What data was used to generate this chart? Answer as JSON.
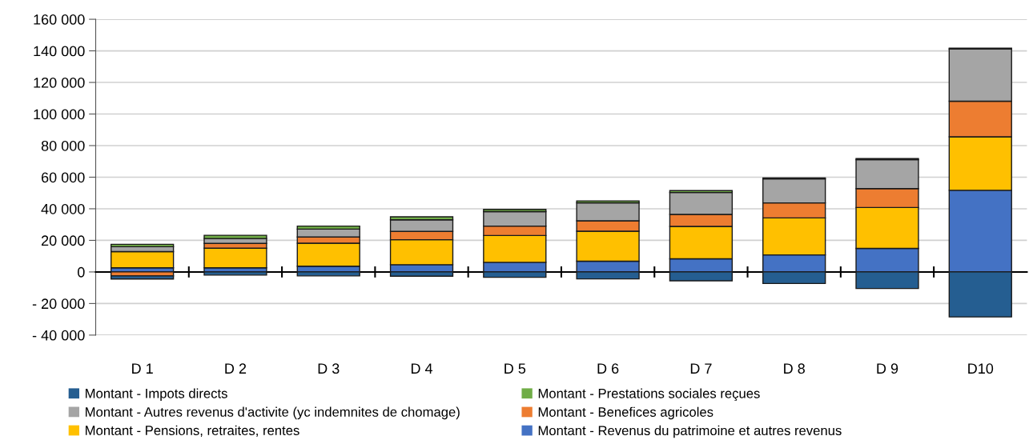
{
  "chart_data": {
    "type": "bar",
    "stacked": true,
    "categories": [
      "D 1",
      "D 2",
      "D 3",
      "D 4",
      "D 5",
      "D 6",
      "D 7",
      "D 8",
      "D 9",
      "D10"
    ],
    "series": [
      {
        "name": "Montant - Revenus du patrimoine et autres revenus",
        "color": "#4472c4",
        "values": [
          2600,
          2600,
          3600,
          4600,
          6100,
          6800,
          8300,
          10800,
          14900,
          51700
        ]
      },
      {
        "name": "Montant - Pensions, retraites, rentes",
        "color": "#ffc000",
        "values": [
          10300,
          12400,
          14600,
          15800,
          17000,
          19000,
          20500,
          23400,
          25900,
          33900
        ]
      },
      {
        "name": "Montant - Benefices agricoles",
        "color": "#ed7d31",
        "values": [
          -2500,
          3100,
          3900,
          5300,
          5900,
          6600,
          7600,
          9500,
          12000,
          22500
        ]
      },
      {
        "name": "Montant - Autres revenus d'activite (yc indemnites de chomage)",
        "color": "#a5a5a5",
        "values": [
          3100,
          3100,
          5000,
          7300,
          9200,
          11400,
          13900,
          15300,
          18300,
          33100
        ]
      },
      {
        "name": "Montant - Prestations sociales reçues",
        "color": "#70ad47",
        "values": [
          1500,
          2000,
          1900,
          1900,
          1400,
          1200,
          1200,
          500,
          700,
          500
        ]
      },
      {
        "name": "Montant - Impots directs",
        "color": "#255e91",
        "values": [
          -2000,
          -2000,
          -2500,
          -2700,
          -3400,
          -4400,
          -5600,
          -7300,
          -10500,
          -28500
        ]
      }
    ],
    "ylim": [
      -40000,
      160000
    ],
    "yticks": [
      {
        "value": -40000,
        "label": "- 40 000"
      },
      {
        "value": -20000,
        "label": "- 20 000"
      },
      0,
      {
        "value": 20000,
        "label": "20 000"
      },
      {
        "value": 40000,
        "label": "40 000"
      },
      {
        "value": 60000,
        "label": "60 000"
      },
      {
        "value": 80000,
        "label": "80 000"
      },
      {
        "value": 100000,
        "label": "100 000"
      },
      {
        "value": 120000,
        "label": "120 000"
      },
      {
        "value": 140000,
        "label": "140 000"
      },
      {
        "value": 160000,
        "label": "160 000"
      }
    ],
    "grid": "y",
    "legend": "bottom"
  }
}
